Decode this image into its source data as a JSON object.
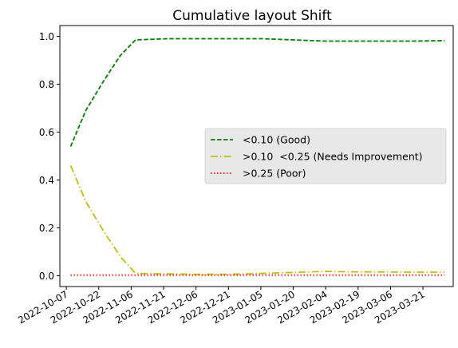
{
  "chart_data": {
    "type": "line",
    "title": "Cumulative layout Shift",
    "xlabel": "",
    "ylabel": "",
    "x_ticks": [
      "2022-10-07",
      "2022-10-22",
      "2022-11-06",
      "2022-11-21",
      "2022-12-06",
      "2022-12-21",
      "2023-01-05",
      "2023-01-20",
      "2023-02-04",
      "2023-02-19",
      "2023-03-06",
      "2023-03-21"
    ],
    "x_range": [
      "2022-10-04",
      "2023-04-04"
    ],
    "ylim": [
      -0.045,
      1.045
    ],
    "y_ticks": [
      0.0,
      0.2,
      0.4,
      0.6,
      0.8,
      1.0
    ],
    "y_tick_labels": [
      "0.0",
      "0.2",
      "0.4",
      "0.6",
      "0.8",
      "1.0"
    ],
    "grid": false,
    "legend_position": "center-right",
    "x": [
      "2022-10-09",
      "2022-10-16",
      "2022-10-24",
      "2022-11-01",
      "2022-11-08",
      "2022-11-23",
      "2022-12-07",
      "2022-12-21",
      "2023-01-06",
      "2023-01-20",
      "2023-02-04",
      "2023-02-17",
      "2023-03-03",
      "2023-03-17",
      "2023-03-31"
    ],
    "series": [
      {
        "name": "<0.10 (Good)",
        "color": "#008000",
        "dash": "dashed",
        "values": [
          0.54,
          0.69,
          0.81,
          0.92,
          0.985,
          0.99,
          0.99,
          0.99,
          0.99,
          0.985,
          0.98,
          0.98,
          0.98,
          0.98,
          0.982
        ]
      },
      {
        "name": ">0.10  <0.25 (Needs Improvement)",
        "color": "#bfbf00",
        "dash": "dashdot",
        "values": [
          0.46,
          0.31,
          0.19,
          0.08,
          0.01,
          0.008,
          0.006,
          0.006,
          0.01,
          0.014,
          0.018,
          0.016,
          0.016,
          0.015,
          0.015
        ]
      },
      {
        "name": ">0.25 (Poor)",
        "color": "#ff0000",
        "dash": "dotted",
        "values": [
          0.003,
          0.003,
          0.003,
          0.003,
          0.003,
          0.003,
          0.003,
          0.003,
          0.003,
          0.003,
          0.003,
          0.003,
          0.003,
          0.003,
          0.003
        ]
      }
    ]
  }
}
